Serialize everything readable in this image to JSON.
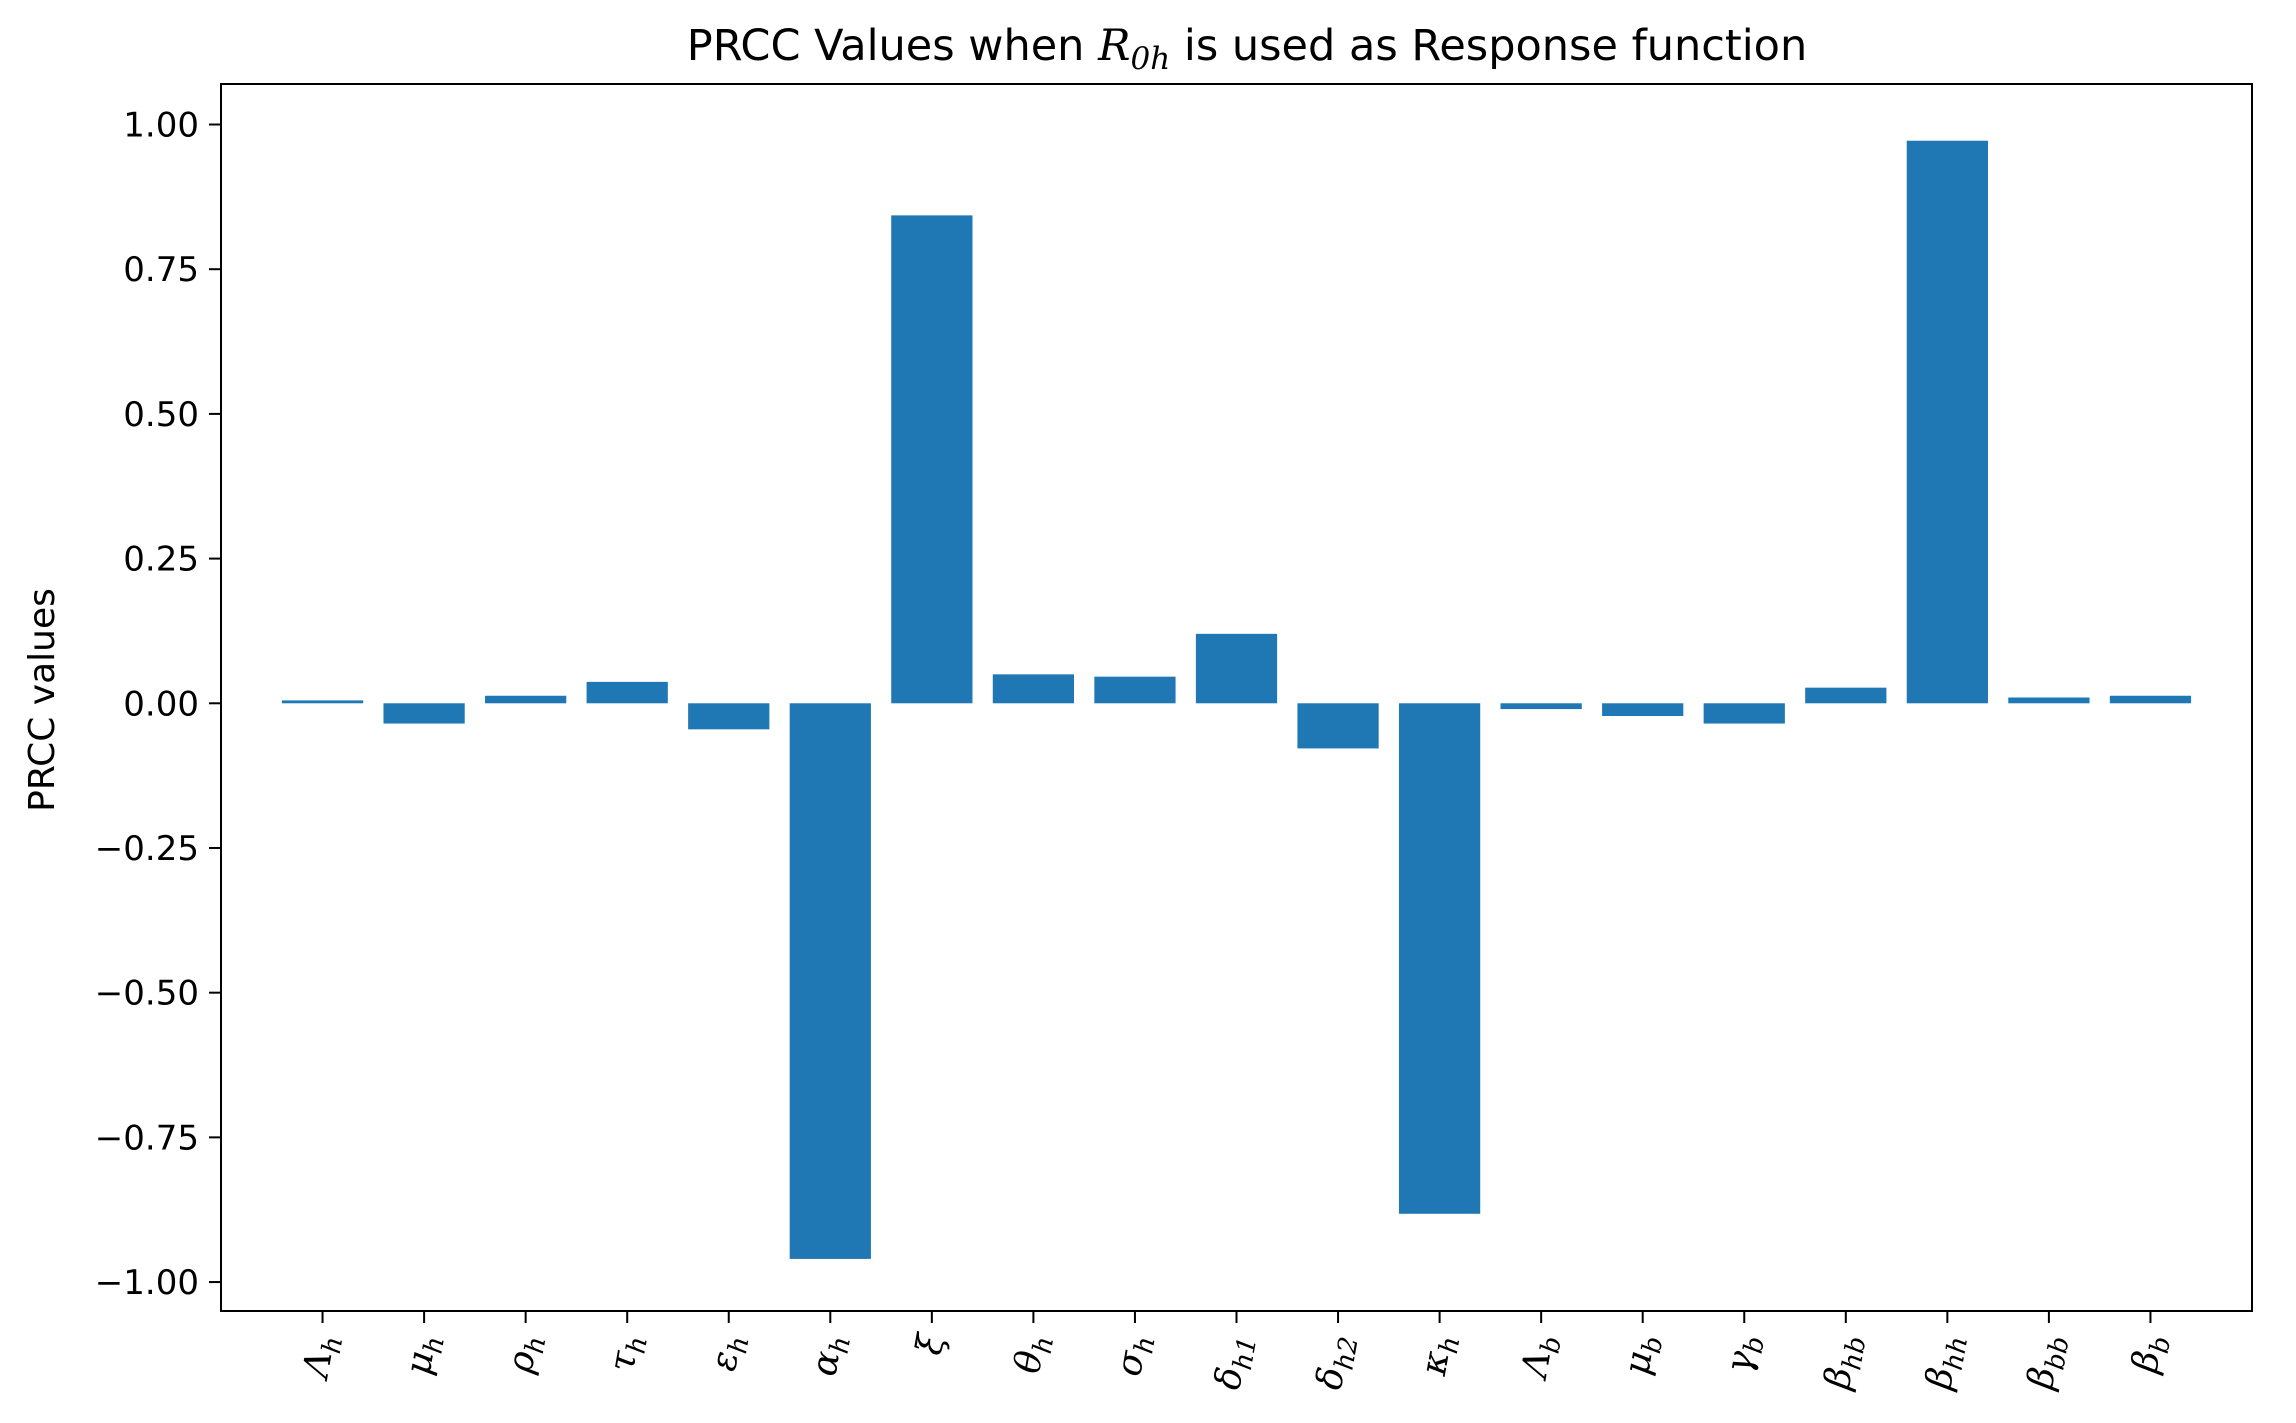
{
  "chart_data": {
    "type": "bar",
    "title": {
      "prefix": "PRCC Values when ",
      "math_main": "R",
      "math_sub": "0h",
      "suffix": " is used as Response function"
    },
    "xlabel": "",
    "ylabel": "PRCC values",
    "ylim": [
      -1.05,
      1.07
    ],
    "yticks": [
      1.0,
      0.75,
      0.5,
      0.25,
      0.0,
      -0.25,
      -0.5,
      -0.75,
      -1.0
    ],
    "ytick_labels": [
      "1.00",
      "0.75",
      "0.50",
      "0.25",
      "0.00",
      "−0.25",
      "−0.50",
      "−0.75",
      "−1.00"
    ],
    "grid": false,
    "bar_color": "#1f77b4",
    "categories": [
      {
        "base": "Λ",
        "sub": "h"
      },
      {
        "base": "μ",
        "sub": "h"
      },
      {
        "base": "ρ",
        "sub": "h"
      },
      {
        "base": "τ",
        "sub": "h"
      },
      {
        "base": "ε",
        "sub": "h"
      },
      {
        "base": "α",
        "sub": "h"
      },
      {
        "base": "ξ",
        "sub": ""
      },
      {
        "base": "θ",
        "sub": "h"
      },
      {
        "base": "σ",
        "sub": "h"
      },
      {
        "base": "δ",
        "sub": "h1"
      },
      {
        "base": "δ",
        "sub": "h2"
      },
      {
        "base": "κ",
        "sub": "h"
      },
      {
        "base": "Λ",
        "sub": "b"
      },
      {
        "base": "μ",
        "sub": "b"
      },
      {
        "base": "γ",
        "sub": "b"
      },
      {
        "base": "β",
        "sub": "hb"
      },
      {
        "base": "β",
        "sub": "hh"
      },
      {
        "base": "β",
        "sub": "bb"
      },
      {
        "base": "β",
        "sub": "b"
      }
    ],
    "values": [
      0.005,
      -0.035,
      0.013,
      0.037,
      -0.045,
      -0.96,
      0.843,
      0.05,
      0.046,
      0.12,
      -0.078,
      -0.882,
      -0.01,
      -0.022,
      -0.035,
      0.027,
      0.972,
      0.01,
      0.013
    ]
  }
}
